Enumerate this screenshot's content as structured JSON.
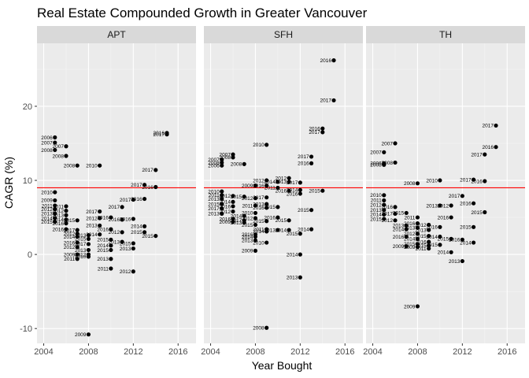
{
  "chart_data": {
    "type": "scatter",
    "title": "Real Estate Compounded Growth in Greater Vancouver",
    "xlabel": "Year Bought",
    "ylabel": "CAGR (%)",
    "xlim": [
      2003.4,
      2017.6
    ],
    "ylim": [
      -12.0,
      28.5
    ],
    "x_ticks": [
      2004,
      2008,
      2012,
      2016
    ],
    "y_ticks": [
      -10,
      0,
      10,
      20
    ],
    "grid": true,
    "reference_line": {
      "y": 9.0,
      "color": "#ff0000"
    },
    "panels": [
      {
        "name": "APT",
        "points": [
          {
            "x": 2005,
            "y": 15.8,
            "label": "2006"
          },
          {
            "x": 2005,
            "y": 15.1,
            "label": "2007"
          },
          {
            "x": 2006,
            "y": 14.6,
            "label": "2007"
          },
          {
            "x": 2005,
            "y": 14.1,
            "label": "2008"
          },
          {
            "x": 2006,
            "y": 13.3,
            "label": "2008"
          },
          {
            "x": 2007,
            "y": 12.0,
            "label": "2008"
          },
          {
            "x": 2009,
            "y": 12.0,
            "label": "2010"
          },
          {
            "x": 2005,
            "y": 8.4,
            "label": "2010"
          },
          {
            "x": 2005,
            "y": 7.3,
            "label": "2009"
          },
          {
            "x": 2005,
            "y": 6.6,
            "label": "2011"
          },
          {
            "x": 2006,
            "y": 6.5,
            "label": "2011"
          },
          {
            "x": 2005,
            "y": 6.1,
            "label": "2012"
          },
          {
            "x": 2006,
            "y": 5.9,
            "label": "2012"
          },
          {
            "x": 2005,
            "y": 5.5,
            "label": "2013"
          },
          {
            "x": 2006,
            "y": 5.3,
            "label": "2013"
          },
          {
            "x": 2005,
            "y": 4.9,
            "label": "2014"
          },
          {
            "x": 2006,
            "y": 4.7,
            "label": "2014"
          },
          {
            "x": 2007,
            "y": 4.6,
            "label": "2015"
          },
          {
            "x": 2005,
            "y": 4.4,
            "label": "2015"
          },
          {
            "x": 2006,
            "y": 4.2,
            "label": "2016"
          },
          {
            "x": 2006,
            "y": 3.4,
            "label": "2016"
          },
          {
            "x": 2007,
            "y": 3.3,
            "label": "2017"
          },
          {
            "x": 2007,
            "y": 2.8,
            "label": "2012"
          },
          {
            "x": 2008,
            "y": 2.6,
            "label": "2013"
          },
          {
            "x": 2007,
            "y": 2.4,
            "label": "2014"
          },
          {
            "x": 2008,
            "y": 2.1,
            "label": "2015"
          },
          {
            "x": 2007,
            "y": 1.6,
            "label": "2016"
          },
          {
            "x": 2008,
            "y": 1.4,
            "label": "2017"
          },
          {
            "x": 2007,
            "y": 1.0,
            "label": "2012"
          },
          {
            "x": 2008,
            "y": 0.6,
            "label": "2013"
          },
          {
            "x": 2007,
            "y": 0.0,
            "label": "2009"
          },
          {
            "x": 2008,
            "y": -0.3,
            "label": "2010"
          },
          {
            "x": 2007,
            "y": -0.6,
            "label": "2011"
          },
          {
            "x": 2008,
            "y": 0.0,
            "label": "2012"
          },
          {
            "x": 2009,
            "y": 5.8,
            "label": "2017"
          },
          {
            "x": 2009,
            "y": 4.9,
            "label": "2012"
          },
          {
            "x": 2010,
            "y": 5.0,
            "label": "2016"
          },
          {
            "x": 2009,
            "y": 3.9,
            "label": "2013"
          },
          {
            "x": 2010,
            "y": 3.4,
            "label": "2016"
          },
          {
            "x": 2009,
            "y": 2.7,
            "label": "2014"
          },
          {
            "x": 2010,
            "y": 2.0,
            "label": "2015"
          },
          {
            "x": 2010,
            "y": 1.2,
            "label": "2014"
          },
          {
            "x": 2010,
            "y": 0.6,
            "label": "2015"
          },
          {
            "x": 2010,
            "y": -0.6,
            "label": "2013"
          },
          {
            "x": 2010,
            "y": -1.9,
            "label": "2011"
          },
          {
            "x": 2011,
            "y": 6.4,
            "label": "2017"
          },
          {
            "x": 2011,
            "y": 4.7,
            "label": "2016"
          },
          {
            "x": 2011,
            "y": 3.0,
            "label": "2012"
          },
          {
            "x": 2011,
            "y": 1.7,
            "label": "2013"
          },
          {
            "x": 2012,
            "y": 7.4,
            "label": "2017"
          },
          {
            "x": 2012,
            "y": 4.8,
            "label": "2016"
          },
          {
            "x": 2012,
            "y": 1.5,
            "label": "2015"
          },
          {
            "x": 2012,
            "y": 0.8,
            "label": "2013"
          },
          {
            "x": 2012,
            "y": -2.3,
            "label": "2012"
          },
          {
            "x": 2013,
            "y": 9.4,
            "label": "2017"
          },
          {
            "x": 2013,
            "y": 7.5,
            "label": "2016"
          },
          {
            "x": 2013,
            "y": 3.8,
            "label": "2014"
          },
          {
            "x": 2013,
            "y": 3.0,
            "label": "2015"
          },
          {
            "x": 2014,
            "y": 11.4,
            "label": "2017"
          },
          {
            "x": 2014,
            "y": 9.1,
            "label": "2016"
          },
          {
            "x": 2014,
            "y": 2.5,
            "label": "2015"
          },
          {
            "x": 2015,
            "y": 16.4,
            "label": "2016"
          },
          {
            "x": 2015,
            "y": 16.2,
            "label": "2017"
          },
          {
            "x": 2008,
            "y": -10.8,
            "label": "2009"
          }
        ]
      },
      {
        "name": "SFH",
        "points": [
          {
            "x": 2015,
            "y": 26.2,
            "label": "2016"
          },
          {
            "x": 2015,
            "y": 20.8,
            "label": "2017"
          },
          {
            "x": 2014,
            "y": 17.0,
            "label": "2016"
          },
          {
            "x": 2014,
            "y": 16.5,
            "label": "2017"
          },
          {
            "x": 2009,
            "y": 14.8,
            "label": "2010"
          },
          {
            "x": 2006,
            "y": 13.5,
            "label": "2007"
          },
          {
            "x": 2006,
            "y": 13.1,
            "label": "2008"
          },
          {
            "x": 2005,
            "y": 12.8,
            "label": "2007"
          },
          {
            "x": 2005,
            "y": 12.4,
            "label": "2008"
          },
          {
            "x": 2007,
            "y": 12.2,
            "label": "2008"
          },
          {
            "x": 2005,
            "y": 12.0,
            "label": "2006"
          },
          {
            "x": 2013,
            "y": 13.2,
            "label": "2017"
          },
          {
            "x": 2013,
            "y": 12.3,
            "label": "2016"
          },
          {
            "x": 2011,
            "y": 10.3,
            "label": "2012"
          },
          {
            "x": 2011,
            "y": 9.8,
            "label": "2013"
          },
          {
            "x": 2009,
            "y": 10.0,
            "label": "2012"
          },
          {
            "x": 2010,
            "y": 9.8,
            "label": "2014"
          },
          {
            "x": 2009,
            "y": 9.3,
            "label": "2016"
          },
          {
            "x": 2012,
            "y": 9.7,
            "label": "2017"
          },
          {
            "x": 2008,
            "y": 9.3,
            "label": "2009"
          },
          {
            "x": 2010,
            "y": 9.0,
            "label": "2011"
          },
          {
            "x": 2011,
            "y": 8.6,
            "label": "2016"
          },
          {
            "x": 2012,
            "y": 8.7,
            "label": "2014"
          },
          {
            "x": 2012,
            "y": 8.2,
            "label": "2016"
          },
          {
            "x": 2014,
            "y": 8.6,
            "label": "2015"
          },
          {
            "x": 2005,
            "y": 8.5,
            "label": "2010"
          },
          {
            "x": 2005,
            "y": 8.0,
            "label": "2011"
          },
          {
            "x": 2006,
            "y": 7.9,
            "label": "2012"
          },
          {
            "x": 2005,
            "y": 7.5,
            "label": "2013"
          },
          {
            "x": 2006,
            "y": 7.1,
            "label": "2014"
          },
          {
            "x": 2007,
            "y": 7.8,
            "label": "2015"
          },
          {
            "x": 2005,
            "y": 6.8,
            "label": "2015"
          },
          {
            "x": 2006,
            "y": 6.5,
            "label": "2016"
          },
          {
            "x": 2005,
            "y": 6.2,
            "label": "2017"
          },
          {
            "x": 2006,
            "y": 5.8,
            "label": "2012"
          },
          {
            "x": 2005,
            "y": 5.5,
            "label": "2013"
          },
          {
            "x": 2007,
            "y": 5.2,
            "label": "2014"
          },
          {
            "x": 2006,
            "y": 4.8,
            "label": "2016"
          },
          {
            "x": 2007,
            "y": 4.6,
            "label": "2017"
          },
          {
            "x": 2008,
            "y": 7.6,
            "label": "2012"
          },
          {
            "x": 2008,
            "y": 6.6,
            "label": "2011"
          },
          {
            "x": 2008,
            "y": 5.6,
            "label": "2010"
          },
          {
            "x": 2008,
            "y": 4.9,
            "label": "2012"
          },
          {
            "x": 2007,
            "y": 4.3,
            "label": "2013"
          },
          {
            "x": 2006,
            "y": 4.4,
            "label": "2009"
          },
          {
            "x": 2008,
            "y": 4.0,
            "label": "2015"
          },
          {
            "x": 2009,
            "y": 7.7,
            "label": "2017"
          },
          {
            "x": 2009,
            "y": 6.8,
            "label": "2013"
          },
          {
            "x": 2009,
            "y": 6.3,
            "label": "2016"
          },
          {
            "x": 2010,
            "y": 6.4,
            "label": "2015"
          },
          {
            "x": 2010,
            "y": 5.0,
            "label": "2016"
          },
          {
            "x": 2009,
            "y": 4.5,
            "label": "2015"
          },
          {
            "x": 2009,
            "y": 3.4,
            "label": "2011"
          },
          {
            "x": 2009,
            "y": 3.1,
            "label": "2014"
          },
          {
            "x": 2008,
            "y": 2.7,
            "label": "2016"
          },
          {
            "x": 2008,
            "y": 2.4,
            "label": "2014"
          },
          {
            "x": 2008,
            "y": 1.9,
            "label": "2013"
          },
          {
            "x": 2009,
            "y": 1.6,
            "label": "2010"
          },
          {
            "x": 2008,
            "y": 0.5,
            "label": "2009"
          },
          {
            "x": 2010,
            "y": 3.3,
            "label": "2013"
          },
          {
            "x": 2011,
            "y": 4.6,
            "label": "2015"
          },
          {
            "x": 2011,
            "y": 3.3,
            "label": "2014"
          },
          {
            "x": 2012,
            "y": 2.8,
            "label": "2015"
          },
          {
            "x": 2013,
            "y": 6.0,
            "label": "2015"
          },
          {
            "x": 2013,
            "y": 3.4,
            "label": "2014"
          },
          {
            "x": 2012,
            "y": 0.0,
            "label": "2014"
          },
          {
            "x": 2012,
            "y": -3.1,
            "label": "2013"
          },
          {
            "x": 2009,
            "y": -9.9,
            "label": "2008"
          }
        ]
      },
      {
        "name": "TH",
        "points": [
          {
            "x": 2015,
            "y": 17.4,
            "label": "2017"
          },
          {
            "x": 2015,
            "y": 14.5,
            "label": "2016"
          },
          {
            "x": 2014,
            "y": 13.5,
            "label": "2017"
          },
          {
            "x": 2006,
            "y": 15.0,
            "label": "2007"
          },
          {
            "x": 2005,
            "y": 13.8,
            "label": "2007"
          },
          {
            "x": 2006,
            "y": 12.4,
            "label": "2008"
          },
          {
            "x": 2005,
            "y": 12.3,
            "label": "2006"
          },
          {
            "x": 2005,
            "y": 12.1,
            "label": "2008"
          },
          {
            "x": 2008,
            "y": 9.6,
            "label": "2008"
          },
          {
            "x": 2010,
            "y": 10.0,
            "label": "2010"
          },
          {
            "x": 2013,
            "y": 10.1,
            "label": "2017"
          },
          {
            "x": 2014,
            "y": 9.9,
            "label": "2016"
          },
          {
            "x": 2005,
            "y": 8.0,
            "label": "2010"
          },
          {
            "x": 2005,
            "y": 7.3,
            "label": "2011"
          },
          {
            "x": 2005,
            "y": 6.7,
            "label": "2012"
          },
          {
            "x": 2005,
            "y": 6.0,
            "label": "2013"
          },
          {
            "x": 2005,
            "y": 5.4,
            "label": "2014"
          },
          {
            "x": 2005,
            "y": 4.8,
            "label": "2015"
          },
          {
            "x": 2006,
            "y": 6.4,
            "label": "2016"
          },
          {
            "x": 2006,
            "y": 5.5,
            "label": "2017"
          },
          {
            "x": 2006,
            "y": 4.6,
            "label": "2012"
          },
          {
            "x": 2007,
            "y": 5.6,
            "label": "2015"
          },
          {
            "x": 2007,
            "y": 3.9,
            "label": "2013"
          },
          {
            "x": 2007,
            "y": 3.4,
            "label": "2014"
          },
          {
            "x": 2008,
            "y": 5.0,
            "label": "2011"
          },
          {
            "x": 2008,
            "y": 4.2,
            "label": "2016"
          },
          {
            "x": 2008,
            "y": 3.6,
            "label": "2013"
          },
          {
            "x": 2008,
            "y": 2.8,
            "label": "2012"
          },
          {
            "x": 2008,
            "y": 2.1,
            "label": "2014"
          },
          {
            "x": 2008,
            "y": 1.4,
            "label": "2015"
          },
          {
            "x": 2008,
            "y": 1.0,
            "label": "2009"
          },
          {
            "x": 2007,
            "y": 2.4,
            "label": "2016"
          },
          {
            "x": 2007,
            "y": 1.1,
            "label": "2009"
          },
          {
            "x": 2009,
            "y": 4.0,
            "label": "2012"
          },
          {
            "x": 2009,
            "y": 3.3,
            "label": "2013"
          },
          {
            "x": 2009,
            "y": 2.5,
            "label": "2015"
          },
          {
            "x": 2009,
            "y": 1.7,
            "label": "2016"
          },
          {
            "x": 2009,
            "y": 1.2,
            "label": "2015"
          },
          {
            "x": 2009,
            "y": 0.8,
            "label": "2011"
          },
          {
            "x": 2010,
            "y": 6.6,
            "label": "2013"
          },
          {
            "x": 2010,
            "y": 3.7,
            "label": "2016"
          },
          {
            "x": 2010,
            "y": 2.4,
            "label": "2014"
          },
          {
            "x": 2010,
            "y": 1.3,
            "label": "2015"
          },
          {
            "x": 2011,
            "y": 6.6,
            "label": "2012"
          },
          {
            "x": 2011,
            "y": 5.0,
            "label": "2016"
          },
          {
            "x": 2011,
            "y": 2.1,
            "label": "2015"
          },
          {
            "x": 2011,
            "y": 0.3,
            "label": "2014"
          },
          {
            "x": 2012,
            "y": 7.9,
            "label": "2017"
          },
          {
            "x": 2012,
            "y": 2.0,
            "label": "2016"
          },
          {
            "x": 2012,
            "y": -0.9,
            "label": "2013"
          },
          {
            "x": 2013,
            "y": 6.9,
            "label": "2016"
          },
          {
            "x": 2013,
            "y": 3.7,
            "label": "2015"
          },
          {
            "x": 2013,
            "y": 1.6,
            "label": "2014"
          },
          {
            "x": 2014,
            "y": 5.7,
            "label": "2015"
          },
          {
            "x": 2008,
            "y": -7.0,
            "label": "2009"
          }
        ]
      }
    ]
  }
}
